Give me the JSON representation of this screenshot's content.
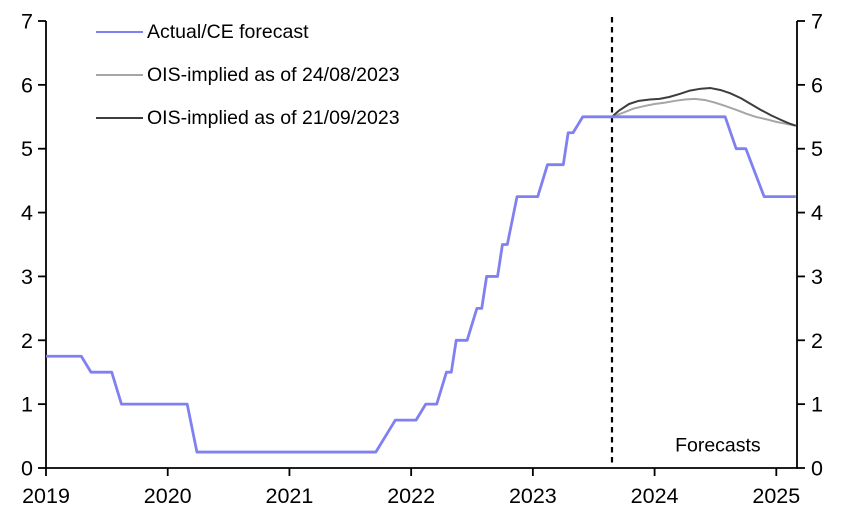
{
  "chart_data": {
    "type": "line",
    "title": "",
    "grid": false,
    "background": "#ffffff",
    "axis_color": "#000000",
    "x_axis": {
      "range": [
        2019,
        2025.17
      ],
      "ticks": [
        2019,
        2020,
        2021,
        2022,
        2023,
        2024,
        2025
      ],
      "tick_labels": [
        "2019",
        "2020",
        "2021",
        "2022",
        "2023",
        "2024",
        "2025"
      ]
    },
    "y_axis_left": {
      "range": [
        0,
        7
      ],
      "ticks": [
        0,
        1,
        2,
        3,
        4,
        5,
        6,
        7
      ],
      "tick_labels": [
        "0",
        "1",
        "2",
        "3",
        "4",
        "5",
        "6",
        "7"
      ]
    },
    "y_axis_right": {
      "range": [
        0,
        7
      ],
      "ticks": [
        0,
        1,
        2,
        3,
        4,
        5,
        6,
        7
      ],
      "tick_labels": [
        "0",
        "1",
        "2",
        "3",
        "4",
        "5",
        "6",
        "7"
      ]
    },
    "legend_position": "top-left",
    "series": [
      {
        "name": "Actual/CE forecast",
        "color": "#8080f0",
        "width": 2.8,
        "points": [
          [
            2019.0,
            1.75
          ],
          [
            2019.29,
            1.75
          ],
          [
            2019.37,
            1.5
          ],
          [
            2019.54,
            1.5
          ],
          [
            2019.62,
            1.0
          ],
          [
            2020.16,
            1.0
          ],
          [
            2020.24,
            0.25
          ],
          [
            2021.71,
            0.25
          ],
          [
            2021.79,
            0.5
          ],
          [
            2021.87,
            0.75
          ],
          [
            2022.04,
            0.75
          ],
          [
            2022.12,
            1.0
          ],
          [
            2022.21,
            1.0
          ],
          [
            2022.29,
            1.5
          ],
          [
            2022.33,
            1.5
          ],
          [
            2022.37,
            2.0
          ],
          [
            2022.46,
            2.0
          ],
          [
            2022.54,
            2.5
          ],
          [
            2022.58,
            2.5
          ],
          [
            2022.62,
            3.0
          ],
          [
            2022.71,
            3.0
          ],
          [
            2022.75,
            3.5
          ],
          [
            2022.79,
            3.5
          ],
          [
            2022.87,
            4.25
          ],
          [
            2023.04,
            4.25
          ],
          [
            2023.12,
            4.75
          ],
          [
            2023.25,
            4.75
          ],
          [
            2023.29,
            5.25
          ],
          [
            2023.33,
            5.25
          ],
          [
            2023.41,
            5.5
          ],
          [
            2024.58,
            5.5
          ],
          [
            2024.67,
            5.0
          ],
          [
            2024.75,
            5.0
          ],
          [
            2024.9,
            4.25
          ],
          [
            2025.16,
            4.25
          ]
        ]
      },
      {
        "name": "OIS-implied as of 24/08/2023",
        "color": "#a6a6a6",
        "width": 2.0,
        "points": [
          [
            2023.65,
            5.5
          ],
          [
            2023.75,
            5.57
          ],
          [
            2023.83,
            5.63
          ],
          [
            2023.92,
            5.67
          ],
          [
            2024.0,
            5.7
          ],
          [
            2024.08,
            5.72
          ],
          [
            2024.17,
            5.75
          ],
          [
            2024.25,
            5.77
          ],
          [
            2024.33,
            5.78
          ],
          [
            2024.42,
            5.76
          ],
          [
            2024.5,
            5.72
          ],
          [
            2024.58,
            5.67
          ],
          [
            2024.67,
            5.61
          ],
          [
            2024.75,
            5.55
          ],
          [
            2024.83,
            5.5
          ],
          [
            2024.92,
            5.46
          ],
          [
            2025.0,
            5.42
          ],
          [
            2025.08,
            5.39
          ],
          [
            2025.16,
            5.36
          ]
        ]
      },
      {
        "name": "OIS-implied as of 21/09/2023",
        "color": "#3d3d3d",
        "width": 2.0,
        "points": [
          [
            2023.65,
            5.5
          ],
          [
            2023.71,
            5.6
          ],
          [
            2023.79,
            5.7
          ],
          [
            2023.87,
            5.75
          ],
          [
            2023.96,
            5.77
          ],
          [
            2024.04,
            5.78
          ],
          [
            2024.12,
            5.81
          ],
          [
            2024.21,
            5.86
          ],
          [
            2024.29,
            5.91
          ],
          [
            2024.38,
            5.94
          ],
          [
            2024.46,
            5.95
          ],
          [
            2024.54,
            5.92
          ],
          [
            2024.62,
            5.87
          ],
          [
            2024.71,
            5.79
          ],
          [
            2024.79,
            5.7
          ],
          [
            2024.87,
            5.61
          ],
          [
            2024.96,
            5.52
          ],
          [
            2025.04,
            5.45
          ],
          [
            2025.1,
            5.4
          ],
          [
            2025.16,
            5.36
          ]
        ]
      }
    ],
    "forecast_divider": {
      "x": 2023.65,
      "style": "dashed",
      "color": "#000000"
    },
    "annotation": {
      "text": "Forecasts",
      "x": 2024.52,
      "y": 0.35
    }
  }
}
